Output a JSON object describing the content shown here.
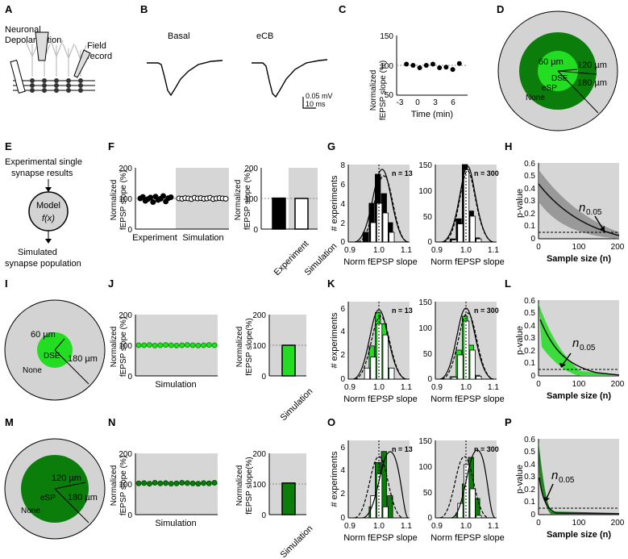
{
  "panel_letters": [
    "A",
    "B",
    "C",
    "D",
    "E",
    "F",
    "G",
    "H",
    "I",
    "J",
    "K",
    "L",
    "M",
    "N",
    "O",
    "P"
  ],
  "colors": {
    "light_green": "#22dd22",
    "dark_green": "#0b7d0b",
    "ring_gray": "#d3d3d3",
    "band_gray": "#d6d6d6",
    "black": "#000000"
  },
  "panelA": {
    "depol_label": "Neuronal\nDepolarization",
    "field_label": "Field\nrecord"
  },
  "panelB": {
    "left_title": "Basal",
    "right_title": "eCB",
    "scale_mv": "0.05 mV",
    "scale_ms": "10 ms"
  },
  "panelC": {
    "ylabel": "Normalized\nfEPSP slope (%)",
    "xlabel": "Time (min)",
    "yticks": [
      "50",
      "100",
      "150"
    ],
    "xticks": [
      "-3",
      "0",
      "3",
      "6"
    ]
  },
  "panelD": {
    "r1": "60 µm",
    "r2": "120 µm",
    "r3": "180 µm",
    "zone_dse": "DSE",
    "zone_esp": "eSP",
    "zone_none": "None"
  },
  "panelE": {
    "top": "Experimental single\nsynapse results",
    "model": "Model",
    "fx": "f(x)",
    "bottom": "Simulated\nsynapse population"
  },
  "panelF": {
    "ylabel": "Normalized\nfEPSP slope (%)",
    "yticks": [
      "0",
      "100",
      "200"
    ],
    "cat1": "Experiment",
    "cat2": "Simulation"
  },
  "panelG": {
    "ylabel": "# experiments",
    "xlabel": "Norm fEPSP slope",
    "n_left": "n = 13",
    "n_right": "n = 300",
    "xticks": [
      "0.9",
      "1.0",
      "1.1"
    ],
    "yticks_left": [
      "0",
      "2",
      "4",
      "6",
      "8"
    ],
    "yticks_right": [
      "0",
      "50",
      "100",
      "150"
    ]
  },
  "panelH": {
    "ylabel": "p-value",
    "xlabel": "Sample size (n)",
    "yticks": [
      "0",
      "0.1",
      "0.2",
      "0.3",
      "0.4",
      "0.5",
      "0.6"
    ],
    "xticks": [
      "0",
      "100",
      "200"
    ],
    "annot": "n",
    "annot_sub": "0.05"
  },
  "panelI": {
    "r1": "60 µm",
    "r3": "180 µm",
    "zone_dse": "DSE",
    "zone_none": "None"
  },
  "panelJ": {
    "ylabel": "Normalized\nfEPSP slope (%)",
    "ylabel_right": "Normalized\nfEPSP slope(%)",
    "yticks": [
      "0",
      "100",
      "200"
    ],
    "cat": "Simulation"
  },
  "panelK": {
    "ylabel": "# experiments",
    "xlabel": "Norm fEPSP slope",
    "n_left": "n = 13",
    "n_right": "n = 300",
    "xticks": [
      "0.9",
      "1.0",
      "1.1"
    ],
    "yticks_left": [
      "0",
      "2",
      "4",
      "6"
    ],
    "yticks_right": [
      "0",
      "50",
      "100",
      "150"
    ]
  },
  "panelL": {
    "ylabel": "p-value",
    "xlabel": "Sample size (n)",
    "yticks": [
      "0",
      "0.1",
      "0.2",
      "0.3",
      "0.4",
      "0.5",
      "0.6"
    ],
    "xticks": [
      "0",
      "100",
      "200"
    ],
    "annot": "n",
    "annot_sub": "0.05"
  },
  "panelM": {
    "r2": "120 µm",
    "r3": "180 µm",
    "zone_esp": "eSP",
    "zone_none": "None"
  },
  "panelN": {
    "ylabel": "Normalized\nfEPSP slope (%)",
    "ylabel_right": "Normalized\nfEPSP slope(%)",
    "yticks": [
      "0",
      "100",
      "200"
    ],
    "cat": "Simulation"
  },
  "panelO": {
    "ylabel": "# experiments",
    "xlabel": "Norm fEPSP slope",
    "n_left": "n = 13",
    "n_right": "n = 300",
    "xticks": [
      "0.9",
      "1.0",
      "1.1"
    ],
    "yticks_left": [
      "0",
      "2",
      "4",
      "6"
    ],
    "yticks_right": [
      "0",
      "50",
      "100",
      "150"
    ]
  },
  "panelP": {
    "ylabel": "p-value",
    "xlabel": "Sample size (n)",
    "yticks": [
      "0",
      "0.1",
      "0.2",
      "0.3",
      "0.4",
      "0.5",
      "0.6"
    ],
    "xticks": [
      "0",
      "100",
      "200"
    ],
    "annot": "n",
    "annot_sub": "0.05"
  },
  "chart_data": [
    {
      "panel": "C",
      "type": "scatter",
      "x": [
        -2,
        -1,
        0,
        1,
        2,
        3,
        4,
        5,
        6
      ],
      "y": [
        102,
        100,
        96,
        100,
        102,
        96,
        97,
        93,
        103
      ],
      "ylim": [
        50,
        150
      ],
      "xlim": [
        -3,
        7
      ]
    },
    {
      "panel": "F-left",
      "type": "scatter",
      "categories": [
        "Experiment",
        "Simulation"
      ],
      "series": [
        {
          "values": [
            100,
            105,
            92,
            98,
            103,
            88,
            106,
            95,
            99,
            108,
            90,
            101,
            104
          ]
        },
        {
          "values": [
            100,
            99,
            101,
            100,
            98,
            102,
            100,
            101,
            99,
            100,
            102,
            98,
            100,
            101,
            100,
            99
          ]
        }
      ],
      "ylim": [
        0,
        200
      ]
    },
    {
      "panel": "F-right",
      "type": "bar",
      "categories": [
        "Experiment",
        "Simulation"
      ],
      "values": [
        101,
        100
      ],
      "ylim": [
        0,
        200
      ]
    },
    {
      "panel": "G-left",
      "type": "bar",
      "x": [
        0.96,
        0.98,
        1.0,
        1.02,
        1.04
      ],
      "series": [
        {
          "values": [
            1,
            4,
            7,
            5,
            2
          ]
        },
        {
          "values": [
            0,
            2,
            4,
            3,
            1
          ]
        }
      ],
      "ylim": [
        0,
        8
      ],
      "xlim": [
        0.9,
        1.1
      ]
    },
    {
      "panel": "G-right",
      "type": "bar",
      "x": [
        0.96,
        0.98,
        1.0,
        1.02,
        1.04
      ],
      "series": [
        {
          "values": [
            6,
            45,
            150,
            60,
            8
          ]
        },
        {
          "values": [
            4,
            35,
            140,
            50,
            6
          ]
        }
      ],
      "ylim": [
        0,
        150
      ],
      "xlim": [
        0.9,
        1.1
      ]
    },
    {
      "panel": "H",
      "type": "line",
      "x": [
        0,
        25,
        50,
        75,
        100,
        125,
        150,
        175,
        200
      ],
      "y": [
        0.45,
        0.3,
        0.2,
        0.14,
        0.1,
        0.08,
        0.06,
        0.05,
        0.04
      ],
      "ylim": [
        0,
        0.6
      ],
      "xlim": [
        0,
        200
      ]
    },
    {
      "panel": "J-left",
      "type": "scatter",
      "categories": [
        "Simulation"
      ],
      "values": [
        100,
        100,
        101,
        99,
        100,
        101,
        100,
        99,
        100,
        101,
        100,
        99,
        100,
        101,
        100
      ],
      "ylim": [
        0,
        200
      ]
    },
    {
      "panel": "J-right",
      "type": "bar",
      "categories": [
        "Simulation"
      ],
      "values": [
        100
      ],
      "ylim": [
        0,
        200
      ]
    },
    {
      "panel": "K-left",
      "type": "bar",
      "x": [
        0.96,
        0.98,
        1.0,
        1.02,
        1.04
      ],
      "series": [
        {
          "values": [
            0,
            3,
            6,
            5,
            1
          ]
        },
        {
          "values": [
            1,
            2,
            5,
            4,
            1
          ]
        }
      ],
      "ylim": [
        0,
        7
      ],
      "xlim": [
        0.9,
        1.1
      ]
    },
    {
      "panel": "K-right",
      "type": "bar",
      "x": [
        0.96,
        0.98,
        1.0,
        1.02,
        1.04
      ],
      "series": [
        {
          "values": [
            5,
            60,
            130,
            70,
            8
          ]
        },
        {
          "values": [
            4,
            50,
            120,
            60,
            6
          ]
        }
      ],
      "ylim": [
        0,
        160
      ],
      "xlim": [
        0.9,
        1.1
      ]
    },
    {
      "panel": "L",
      "type": "line",
      "x": [
        0,
        20,
        40,
        60,
        80,
        100,
        150,
        200
      ],
      "y": [
        0.45,
        0.25,
        0.15,
        0.08,
        0.05,
        0.03,
        0.01,
        0.0
      ],
      "ylim": [
        0,
        0.6
      ],
      "xlim": [
        0,
        200
      ]
    },
    {
      "panel": "N-left",
      "type": "scatter",
      "categories": [
        "Simulation"
      ],
      "values": [
        102,
        103,
        101,
        104,
        102,
        103,
        101,
        102,
        104,
        103,
        102,
        101,
        103,
        102,
        104
      ],
      "ylim": [
        0,
        200
      ]
    },
    {
      "panel": "N-right",
      "type": "bar",
      "categories": [
        "Simulation"
      ],
      "values": [
        103
      ],
      "ylim": [
        0,
        200
      ]
    },
    {
      "panel": "O-left",
      "type": "bar",
      "x": [
        0.98,
        1.0,
        1.02,
        1.04
      ],
      "series": [
        {
          "values": [
            1,
            5,
            6,
            2
          ]
        },
        {
          "values": [
            2,
            4,
            1,
            0
          ]
        }
      ],
      "ylim": [
        0,
        7
      ],
      "xlim": [
        0.9,
        1.1
      ]
    },
    {
      "panel": "O-right",
      "type": "bar",
      "x": [
        0.98,
        1.0,
        1.02,
        1.04
      ],
      "series": [
        {
          "values": [
            10,
            70,
            125,
            40
          ]
        },
        {
          "values": [
            30,
            110,
            60,
            5
          ]
        }
      ],
      "ylim": [
        0,
        160
      ],
      "xlim": [
        0.9,
        1.1
      ]
    },
    {
      "panel": "P",
      "type": "line",
      "x": [
        0,
        10,
        20,
        30,
        50,
        100,
        200
      ],
      "y": [
        0.3,
        0.1,
        0.04,
        0.02,
        0.01,
        0.0,
        0.0
      ],
      "ylim": [
        0,
        0.6
      ],
      "xlim": [
        0,
        200
      ]
    }
  ]
}
